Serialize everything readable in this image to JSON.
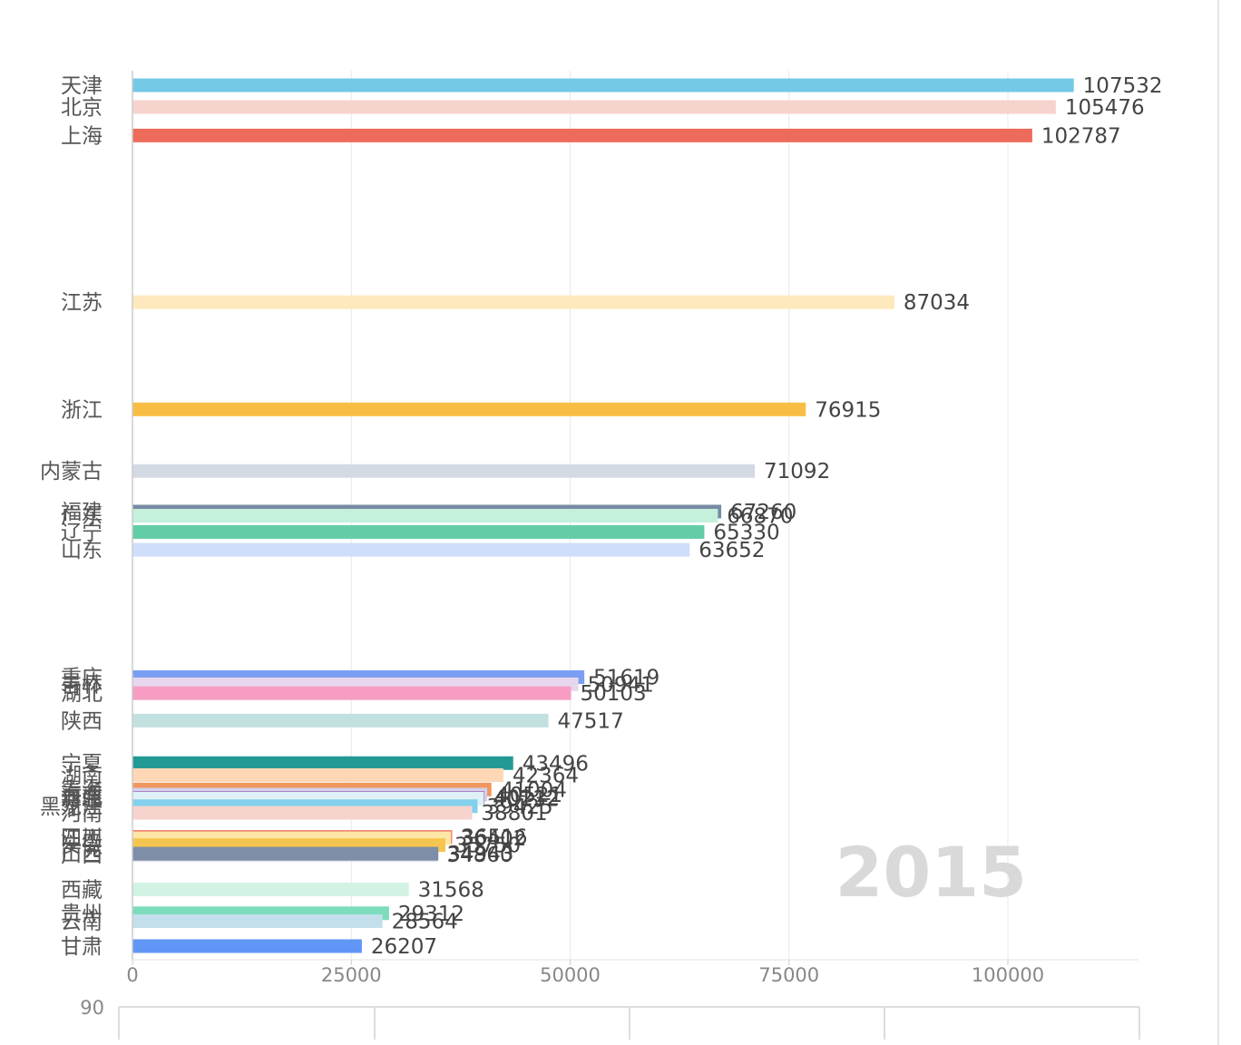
{
  "chart_data": {
    "type": "bar",
    "orientation": "horizontal",
    "categories": [
      "天津",
      "北京",
      "上海",
      "江苏",
      "浙江",
      "内蒙古",
      "福建",
      "广东",
      "辽宁",
      "山东",
      "重庆",
      "吉林",
      "湖北",
      "陕西",
      "宁夏",
      "湖南",
      "青海",
      "海南",
      "河北",
      "新疆",
      "黑龙江",
      "河南",
      "四川",
      "江西",
      "安徽",
      "广西",
      "山西",
      "西藏",
      "贵州",
      "云南",
      "甘肃"
    ],
    "values": [
      107532,
      105476,
      102787,
      87034,
      76915,
      71092,
      67260,
      66870,
      65330,
      63652,
      51619,
      50941,
      50103,
      47517,
      43496,
      42364,
      41004,
      40521,
      40212,
      40132,
      39425,
      38801,
      36516,
      36402,
      35750,
      34860,
      34943,
      31568,
      29312,
      28564,
      26207
    ],
    "colors": [
      "#73c9e6",
      "#f7d3ce",
      "#ee6b5c",
      "#fde9bd",
      "#f8be43",
      "#d4dae3",
      "#778ba3",
      "#c4f0dc",
      "#63cda7",
      "#cfdef9",
      "#7a9ef3",
      "#e6d7ee",
      "#f79cc2",
      "#c2e0df",
      "#239994",
      "#fed7b6",
      "#f0965e",
      "#d3d1ea",
      "#a97dc8",
      "#dff0f6",
      "#82d0ec",
      "#f7d3ce",
      "#ee6b5c",
      "#fde5a5",
      "#f5c551",
      "#c2c9d7",
      "#7d8ea6",
      "#d2f3e4",
      "#7ddcbb",
      "#c4dfec",
      "#6196f6"
    ],
    "xlim": [
      0,
      115000
    ],
    "xticks": [
      "0",
      "25000",
      "50000",
      "75000",
      "100000"
    ],
    "grid": true,
    "year": "2015",
    "slider_label": "90"
  }
}
